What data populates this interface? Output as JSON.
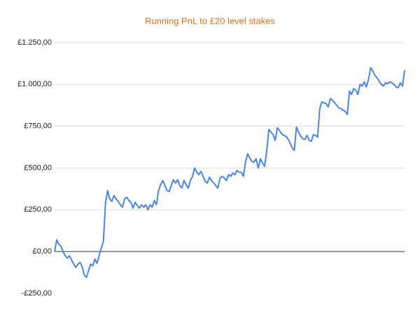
{
  "chart_data": {
    "type": "line",
    "title": "Running PnL to £20 level stakes",
    "color": "#4a86e8",
    "grid": true,
    "ylim": [
      -250,
      1250
    ],
    "yticks": [
      {
        "value": -250,
        "label": "-£250,00"
      },
      {
        "value": 0,
        "label": "£0,00"
      },
      {
        "value": 250,
        "label": "£250,00"
      },
      {
        "value": 500,
        "label": "£500,00"
      },
      {
        "value": 750,
        "label": "£750,00"
      },
      {
        "value": 1000,
        "label": "£1.000,00"
      },
      {
        "value": 1250,
        "label": "£1.250,00"
      }
    ],
    "categories": [
      null,
      null,
      null,
      null,
      null,
      null,
      null,
      null,
      null,
      null,
      null,
      null,
      null,
      null,
      null,
      null,
      null,
      null,
      null,
      null,
      null,
      null,
      null,
      null,
      null,
      null,
      null,
      null,
      null,
      null,
      null,
      null,
      null,
      null,
      null,
      null,
      null,
      null,
      null,
      null,
      null,
      null,
      null,
      null,
      null,
      null,
      null,
      null,
      null,
      null,
      null,
      null,
      null,
      null,
      null,
      null,
      null,
      null,
      null,
      null,
      null,
      null,
      null,
      null,
      null,
      null,
      null,
      null,
      null,
      null,
      null,
      null,
      null,
      null,
      null,
      null,
      null,
      null,
      null,
      null,
      null,
      null,
      null,
      null,
      null,
      null,
      null,
      null,
      null,
      null,
      null,
      null,
      null,
      null,
      null,
      null,
      null,
      null,
      null,
      null,
      null,
      null,
      null,
      null,
      null,
      null,
      null,
      null,
      null,
      null,
      null,
      null,
      null,
      null,
      null,
      null,
      null,
      null,
      null,
      null,
      null,
      null,
      null,
      null,
      null,
      null,
      null,
      null,
      null,
      null,
      null,
      null,
      null,
      null,
      null,
      null,
      null,
      null,
      null,
      null,
      null,
      null,
      null,
      null,
      null,
      null,
      null,
      null,
      null,
      null,
      null,
      null,
      null,
      null,
      null,
      null,
      null,
      null,
      null,
      null,
      null,
      null,
      null,
      null,
      null,
      null
    ],
    "values": [
      0,
      70,
      45,
      30,
      0,
      -25,
      -40,
      -25,
      -50,
      -75,
      -95,
      -75,
      -65,
      -90,
      -140,
      -155,
      -115,
      -75,
      -85,
      -45,
      -70,
      -25,
      20,
      60,
      290,
      365,
      315,
      300,
      335,
      315,
      300,
      280,
      265,
      315,
      325,
      305,
      295,
      260,
      295,
      275,
      260,
      280,
      265,
      280,
      250,
      280,
      265,
      305,
      280,
      365,
      400,
      425,
      395,
      365,
      360,
      395,
      430,
      410,
      430,
      395,
      380,
      425,
      400,
      380,
      425,
      450,
      500,
      475,
      460,
      480,
      450,
      420,
      410,
      445,
      425,
      410,
      395,
      380,
      440,
      450,
      440,
      425,
      460,
      450,
      470,
      460,
      485,
      475,
      475,
      450,
      535,
      585,
      560,
      540,
      535,
      555,
      500,
      555,
      530,
      510,
      600,
      730,
      715,
      700,
      665,
      740,
      725,
      705,
      695,
      690,
      675,
      650,
      620,
      605,
      745,
      715,
      690,
      675,
      670,
      695,
      665,
      660,
      700,
      695,
      685,
      855,
      895,
      890,
      885,
      865,
      915,
      905,
      890,
      875,
      860,
      855,
      845,
      840,
      820,
      960,
      940,
      975,
      965,
      940,
      1000,
      990,
      1015,
      985,
      1030,
      1100,
      1080,
      1055,
      1040,
      1020,
      1000,
      990,
      1010,
      1005,
      1015,
      1010,
      1000,
      985,
      980,
      1010,
      990,
      1085
    ]
  }
}
